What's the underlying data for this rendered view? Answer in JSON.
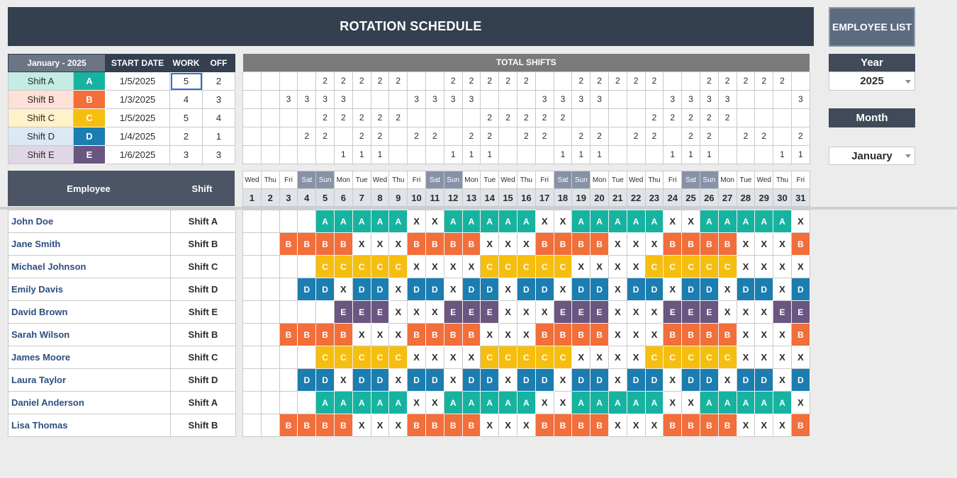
{
  "title": "ROTATION SCHEDULE",
  "employee_list_button": "EMPLOYEE LIST",
  "controls": {
    "year_label": "Year",
    "year_value": "2025",
    "month_label": "Month",
    "month_value": "January"
  },
  "legend": {
    "month_header": "January - 2025",
    "start_header": "START DATE",
    "work_header": "WORK",
    "off_header": "OFF",
    "shifts": [
      {
        "name": "Shift A",
        "code": "A",
        "start": "1/5/2025",
        "work": "5",
        "off": "2",
        "bg": "#c4ebe4",
        "color": "#16b3a0"
      },
      {
        "name": "Shift B",
        "code": "B",
        "start": "1/3/2025",
        "work": "4",
        "off": "3",
        "bg": "#fde0d6",
        "color": "#f26e3a"
      },
      {
        "name": "Shift C",
        "code": "C",
        "start": "1/5/2025",
        "work": "5",
        "off": "4",
        "bg": "#fff1c9",
        "color": "#f6be0f"
      },
      {
        "name": "Shift D",
        "code": "D",
        "start": "1/4/2025",
        "work": "2",
        "off": "1",
        "bg": "#dbe9f5",
        "color": "#1b7db0"
      },
      {
        "name": "Shift E",
        "code": "E",
        "start": "1/6/2025",
        "work": "3",
        "off": "3",
        "bg": "#dfd7e6",
        "color": "#6a5681"
      }
    ]
  },
  "totals_header": "TOTAL SHIFTS",
  "totals": [
    "",
    "",
    "",
    "",
    "2",
    "2",
    "2",
    "2",
    "2",
    "",
    "",
    "2",
    "2",
    "2",
    "2",
    "2",
    "",
    "",
    "2",
    "2",
    "2",
    "2",
    "2",
    "",
    "",
    "2",
    "2",
    "2",
    "2",
    "2",
    "",
    "",
    "",
    "3",
    "3",
    "3",
    "3",
    "",
    "",
    "",
    "3",
    "3",
    "3",
    "3",
    "",
    "",
    "",
    "3",
    "3",
    "3",
    "3",
    "",
    "",
    "",
    "3",
    "3",
    "3",
    "3",
    "",
    "",
    "",
    "3",
    "",
    "",
    "",
    "",
    "2",
    "2",
    "2",
    "2",
    "2",
    "",
    "",
    "",
    "",
    "2",
    "2",
    "2",
    "2",
    "2",
    "",
    "",
    "",
    "",
    "2",
    "2",
    "2",
    "2",
    "2",
    "",
    "",
    "",
    "",
    "",
    "",
    "",
    "2",
    "2",
    "",
    "2",
    "2",
    "",
    "2",
    "2",
    "",
    "2",
    "2",
    "",
    "2",
    "2",
    "",
    "2",
    "2",
    "",
    "2",
    "2",
    "",
    "2",
    "2",
    "",
    "2",
    "2",
    "",
    "2",
    "",
    "",
    "",
    "",
    "",
    "1",
    "1",
    "1",
    "",
    "",
    "",
    "1",
    "1",
    "1",
    "",
    "",
    "",
    "1",
    "1",
    "1",
    "",
    "",
    "",
    "1",
    "1",
    "1",
    "",
    "",
    "",
    "1",
    "1"
  ],
  "headers": {
    "employee": "Employee",
    "shift": "Shift"
  },
  "days": [
    "Wed",
    "Thu",
    "Fri",
    "Sat",
    "Sun",
    "Mon",
    "Tue",
    "Wed",
    "Thu",
    "Fri",
    "Sat",
    "Sun",
    "Mon",
    "Tue",
    "Wed",
    "Thu",
    "Fri",
    "Sat",
    "Sun",
    "Mon",
    "Tue",
    "Wed",
    "Thu",
    "Fri",
    "Sat",
    "Sun",
    "Mon",
    "Tue",
    "Wed",
    "Thu",
    "Fri"
  ],
  "dates": [
    "1",
    "2",
    "3",
    "4",
    "5",
    "6",
    "7",
    "8",
    "9",
    "10",
    "11",
    "12",
    "13",
    "14",
    "15",
    "16",
    "17",
    "18",
    "19",
    "20",
    "21",
    "22",
    "23",
    "24",
    "25",
    "26",
    "27",
    "28",
    "29",
    "30",
    "31"
  ],
  "patterns": {
    "A": "....AAAAAXXAAAAAXXAAAAAXXAAAAAX",
    "B": "..BBBBXXXBBBBXXXBBBBXXXBBBBXXXB",
    "C": "....CCCCCXXXXCCCCCXXXXCCCCCXXXX",
    "D": "...DDXDDXDDXDDXDDXDDXDDXDDXDDXD",
    "E": ".....EEEXXXEEEXXXEEEXXXEEEXXXEE"
  },
  "employees": [
    {
      "name": "John Doe",
      "shift": "Shift A",
      "code": "A"
    },
    {
      "name": "Jane Smith",
      "shift": "Shift B",
      "code": "B"
    },
    {
      "name": "Michael Johnson",
      "shift": "Shift C",
      "code": "C"
    },
    {
      "name": "Emily Davis",
      "shift": "Shift D",
      "code": "D"
    },
    {
      "name": "David Brown",
      "shift": "Shift E",
      "code": "E"
    },
    {
      "name": "Sarah Wilson",
      "shift": "Shift B",
      "code": "B"
    },
    {
      "name": "James Moore",
      "shift": "Shift C",
      "code": "C"
    },
    {
      "name": "Laura Taylor",
      "shift": "Shift D",
      "code": "D"
    },
    {
      "name": "Daniel Anderson",
      "shift": "Shift A",
      "code": "A"
    },
    {
      "name": "Lisa Thomas",
      "shift": "Shift B",
      "code": "B"
    }
  ]
}
